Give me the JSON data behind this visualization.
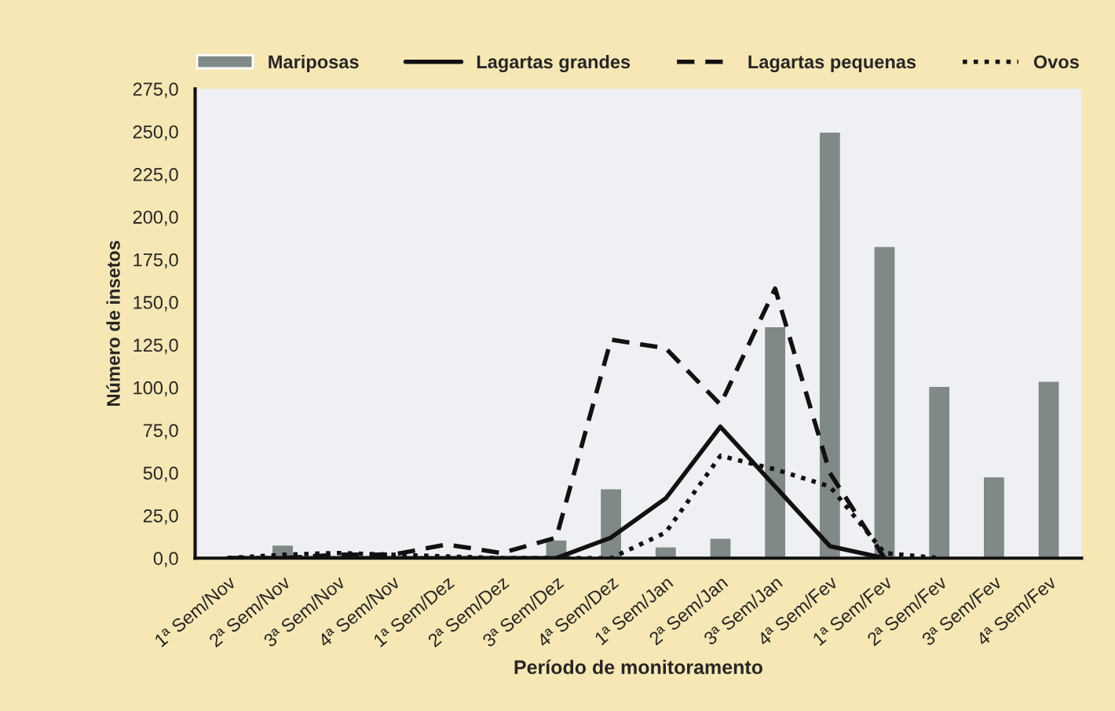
{
  "chart_data": {
    "type": "bar",
    "xlabel": "Período de monitoramento",
    "ylabel": "Número de insetos",
    "categories": [
      "1ª Sem/Nov",
      "2ª Sem/Nov",
      "3ª Sem/Nov",
      "4ª Sem/Nov",
      "1ª Sem/Dez",
      "2ª Sem/Dez",
      "3ª Sem/Dez",
      "4ª Sem/Dez",
      "1ª Sem/Jan",
      "2ª Sem/Jan",
      "3ª Sem/Jan",
      "4ª Sem/Fev",
      "1ª Sem/Fev",
      "2ª Sem/Fev",
      "3ª Sem/Fev",
      "4ª Sem/Fev"
    ],
    "series": [
      {
        "name": "Mariposas",
        "color": "#7f8a88",
        "values": [
          0,
          7,
          0,
          null,
          0,
          0,
          10,
          40,
          6,
          11,
          135,
          249,
          182,
          100,
          47,
          103
        ]
      },
      {
        "name": "Lagartas grandes",
        "type": "line",
        "line_style": "solid",
        "color": "#111111",
        "values": [
          0,
          0,
          0,
          0,
          0,
          0,
          0,
          12,
          35,
          77,
          42,
          7,
          0,
          null,
          null,
          null
        ]
      },
      {
        "name": "Lagartas pequenas",
        "type": "line",
        "line_style": "dashed",
        "color": "#111111",
        "values": [
          0,
          0,
          2,
          2,
          8,
          3,
          12,
          128,
          123,
          90,
          158,
          50,
          0,
          null,
          null,
          null
        ]
      },
      {
        "name": "Ovos",
        "type": "line",
        "line_style": "dotted",
        "color": "#111111",
        "values": [
          0,
          2,
          3,
          2,
          1,
          0,
          0,
          0,
          15,
          60,
          52,
          42,
          3,
          0,
          null,
          null
        ]
      }
    ],
    "ylim": [
      0,
      275
    ],
    "yticks": [
      {
        "value": 0,
        "label": "0,0"
      },
      {
        "value": 25,
        "label": "25,0"
      },
      {
        "value": 50,
        "label": "50,0"
      },
      {
        "value": 75,
        "label": "75,0"
      },
      {
        "value": 100,
        "label": "100,0"
      },
      {
        "value": 125,
        "label": "125,0"
      },
      {
        "value": 150,
        "label": "150,0"
      },
      {
        "value": 175,
        "label": "175,0"
      },
      {
        "value": 200,
        "label": "200,0"
      },
      {
        "value": 225,
        "label": "225,0"
      },
      {
        "value": 250,
        "label": "250,0"
      },
      {
        "value": 275,
        "label": "275,0"
      }
    ],
    "grid": false,
    "legend": "top",
    "marker": "none"
  }
}
